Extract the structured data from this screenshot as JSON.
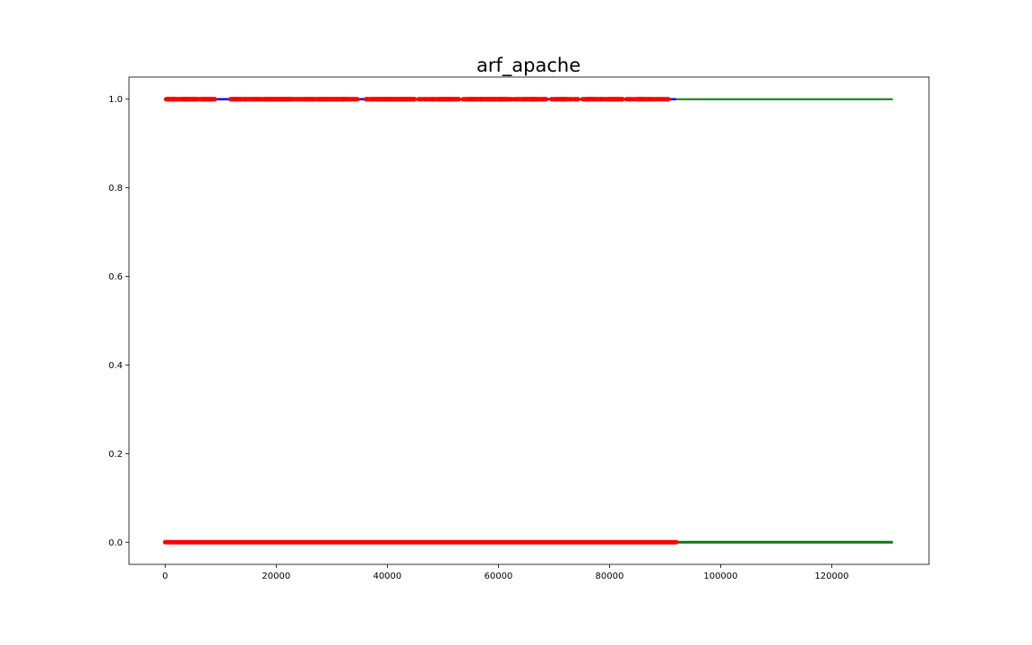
{
  "chart_data": {
    "type": "scatter",
    "title": "arf_apache",
    "xlabel": "",
    "ylabel": "",
    "xlim": [
      -6500,
      137500
    ],
    "ylim": [
      -0.05,
      1.05
    ],
    "x_ticks": [
      0,
      20000,
      40000,
      60000,
      80000,
      100000,
      120000
    ],
    "x_tick_labels": [
      "0",
      "20000",
      "40000",
      "60000",
      "80000",
      "100000",
      "120000"
    ],
    "y_ticks": [
      0.0,
      0.2,
      0.4,
      0.6,
      0.8,
      1.0
    ],
    "y_tick_labels": [
      "0.0",
      "0.2",
      "0.4",
      "0.6",
      "0.8",
      "1.0"
    ],
    "grid": false,
    "legend": "none",
    "series": [
      {
        "color": "#ff0000",
        "segments": [
          {
            "y": 0,
            "x_start": 0,
            "x_end": 92000
          }
        ],
        "points_y1_x": [
          500,
          900,
          1300,
          2500,
          3200,
          3800,
          4300,
          4900,
          5500,
          6800,
          7400,
          7900,
          8600,
          12300,
          12900,
          13500,
          14700,
          15600,
          16300,
          17400,
          18200,
          18900,
          19500,
          20200,
          20800,
          21400,
          22100,
          23000,
          24300,
          25100,
          26000,
          26800,
          27900,
          28500,
          29200,
          29900,
          30700,
          31500,
          32200,
          32900,
          34300,
          36700,
          37900,
          38600,
          39200,
          39900,
          40600,
          41300,
          42000,
          42700,
          43300,
          43900,
          44500,
          46200,
          47600,
          48900,
          49600,
          50300,
          51000,
          51700,
          52600,
          54200,
          55300,
          56100,
          56900,
          57700,
          58600,
          59400,
          60200,
          60900,
          61600,
          63900,
          64700,
          65600,
          66400,
          67300,
          68300,
          70100,
          71400,
          72200,
          74000,
          75700,
          76600,
          77500,
          78600,
          79600,
          80600,
          81300,
          82000,
          83600,
          85400,
          86200,
          87300,
          88300,
          89800
        ]
      },
      {
        "color": "#0000ff",
        "segments": [
          {
            "y": 1,
            "x_start": 0,
            "x_end": 92000
          }
        ]
      },
      {
        "color": "#008000",
        "segments": [
          {
            "y": 0,
            "x_start": 92000,
            "x_end": 131000
          },
          {
            "y": 1,
            "x_start": 92000,
            "x_end": 131000
          }
        ]
      }
    ]
  }
}
